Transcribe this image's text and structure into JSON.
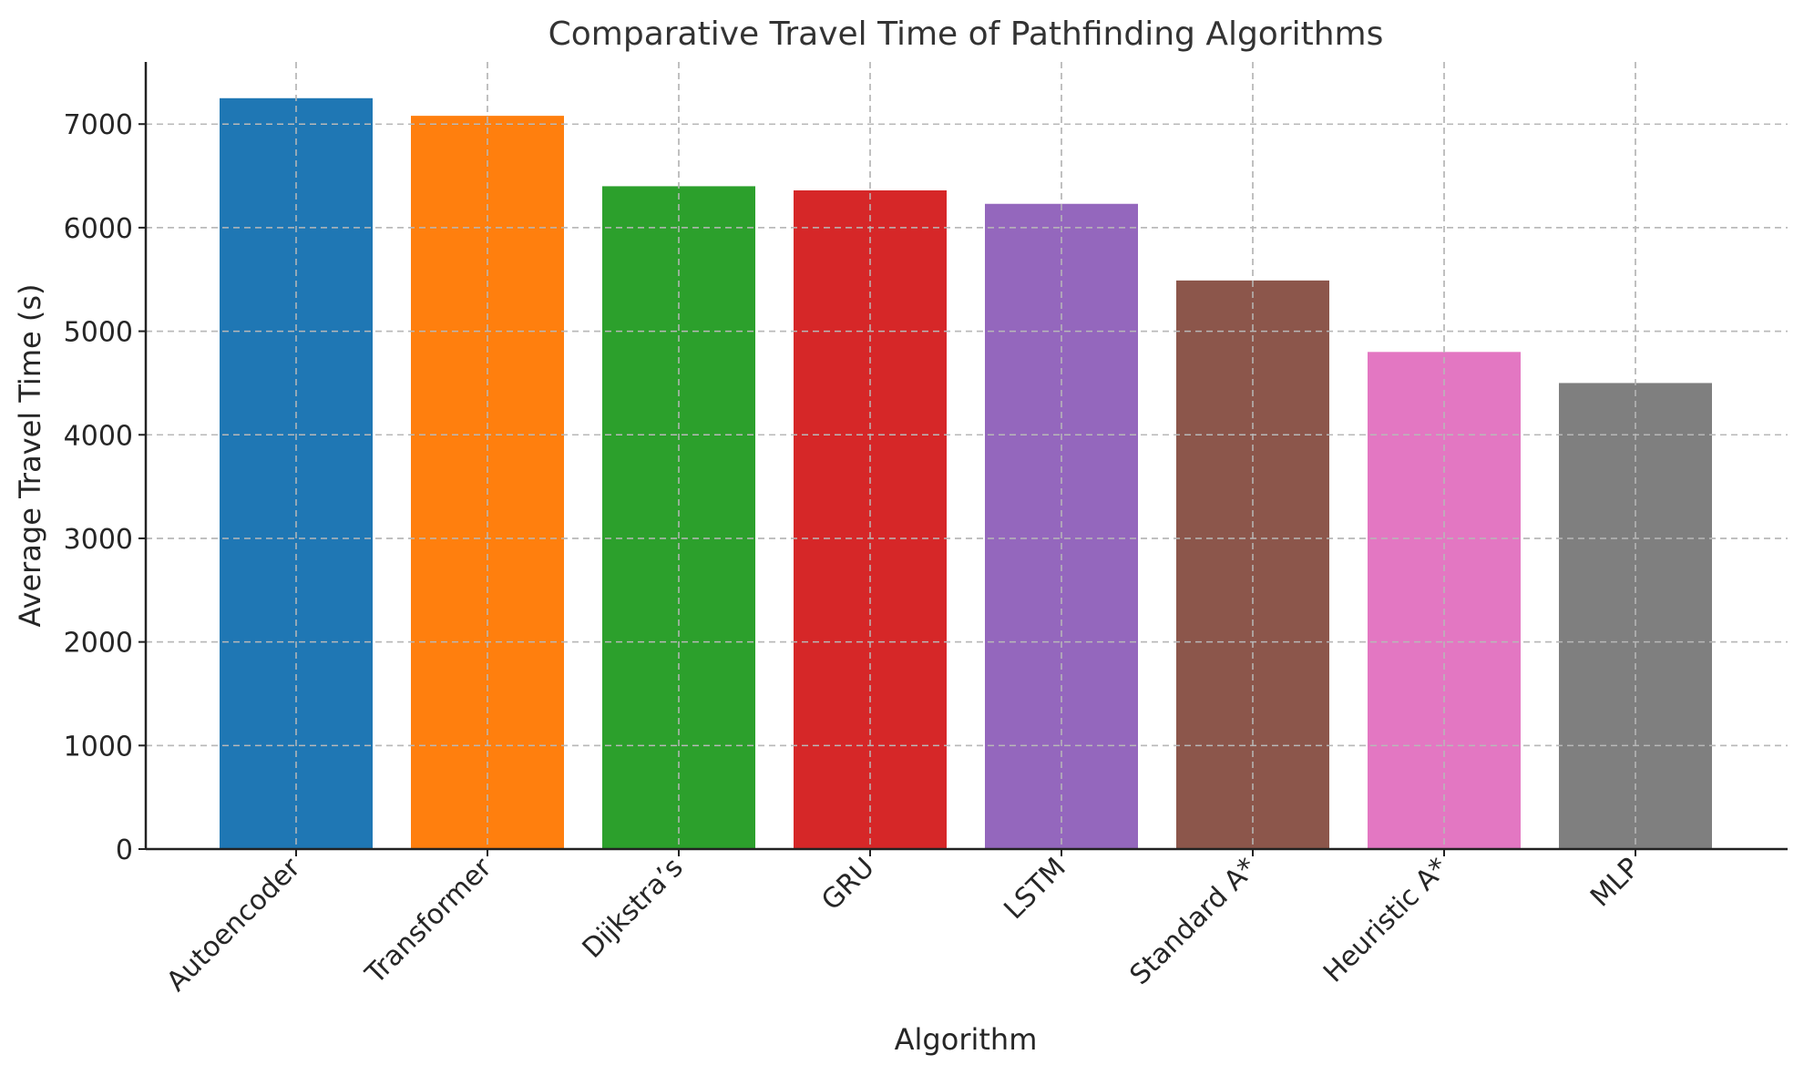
{
  "chart_data": {
    "type": "bar",
    "title": "Comparative Travel Time of Pathfinding Algorithms",
    "xlabel": "Algorithm",
    "ylabel": "Average Travel Time (s)",
    "categories": [
      "Autoencoder",
      "Transformer",
      "Dijkstra’s",
      "GRU",
      "LSTM",
      "Standard A*",
      "Heuristic A*",
      "MLP"
    ],
    "values": [
      7250,
      7080,
      6400,
      6360,
      6230,
      5490,
      4800,
      4500
    ],
    "colors": [
      "#1f77b4",
      "#ff7f0e",
      "#2ca02c",
      "#d62728",
      "#9467bd",
      "#8c564b",
      "#e377c2",
      "#7f7f7f"
    ],
    "ylim": [
      0,
      7600
    ],
    "yticks": [
      0,
      1000,
      2000,
      3000,
      4000,
      5000,
      6000,
      7000
    ],
    "ytick_labels": [
      "0",
      "1000",
      "2000",
      "3000",
      "4000",
      "5000",
      "6000",
      "7000"
    ],
    "grid": true,
    "legend": false
  }
}
